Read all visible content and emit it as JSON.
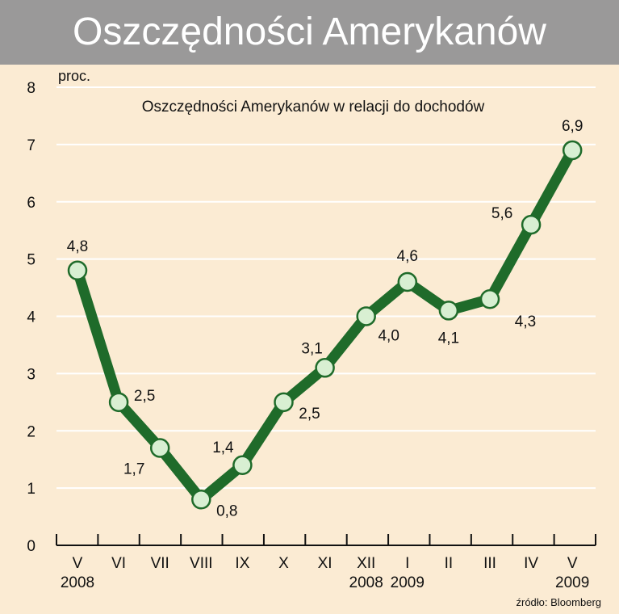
{
  "header": {
    "title": "Oszczędności Amerykanów"
  },
  "source": "źródło: Bloomberg",
  "chart_data": {
    "type": "line",
    "title": "Oszczędności Amerykanów w relacji do dochodów",
    "ylabel": "proc.",
    "ylim": [
      0,
      8
    ],
    "yticks": [
      0,
      1,
      2,
      3,
      4,
      5,
      6,
      7,
      8
    ],
    "grid": true,
    "categories": [
      "V",
      "VI",
      "VII",
      "VIII",
      "IX",
      "X",
      "XI",
      "XII",
      "I",
      "II",
      "III",
      "IV",
      "V"
    ],
    "year_labels": [
      {
        "index": 0,
        "text": "2008"
      },
      {
        "index": 7,
        "text": "2008"
      },
      {
        "index": 8,
        "text": "2009"
      },
      {
        "index": 12,
        "text": "2009"
      }
    ],
    "values": [
      4.8,
      2.5,
      1.7,
      0.8,
      1.4,
      2.5,
      3.1,
      4.0,
      4.6,
      4.1,
      4.3,
      5.6,
      6.9
    ],
    "value_labels": [
      "4,8",
      "2,5",
      "1,7",
      "0,8",
      "1,4",
      "2,5",
      "3,1",
      "4,0",
      "4,6",
      "4,1",
      "4,3",
      "5,6",
      "6,9"
    ],
    "line_color": "#1f6b2a",
    "marker_fill": "#d8efd2",
    "grid_color": "#ffffff"
  }
}
